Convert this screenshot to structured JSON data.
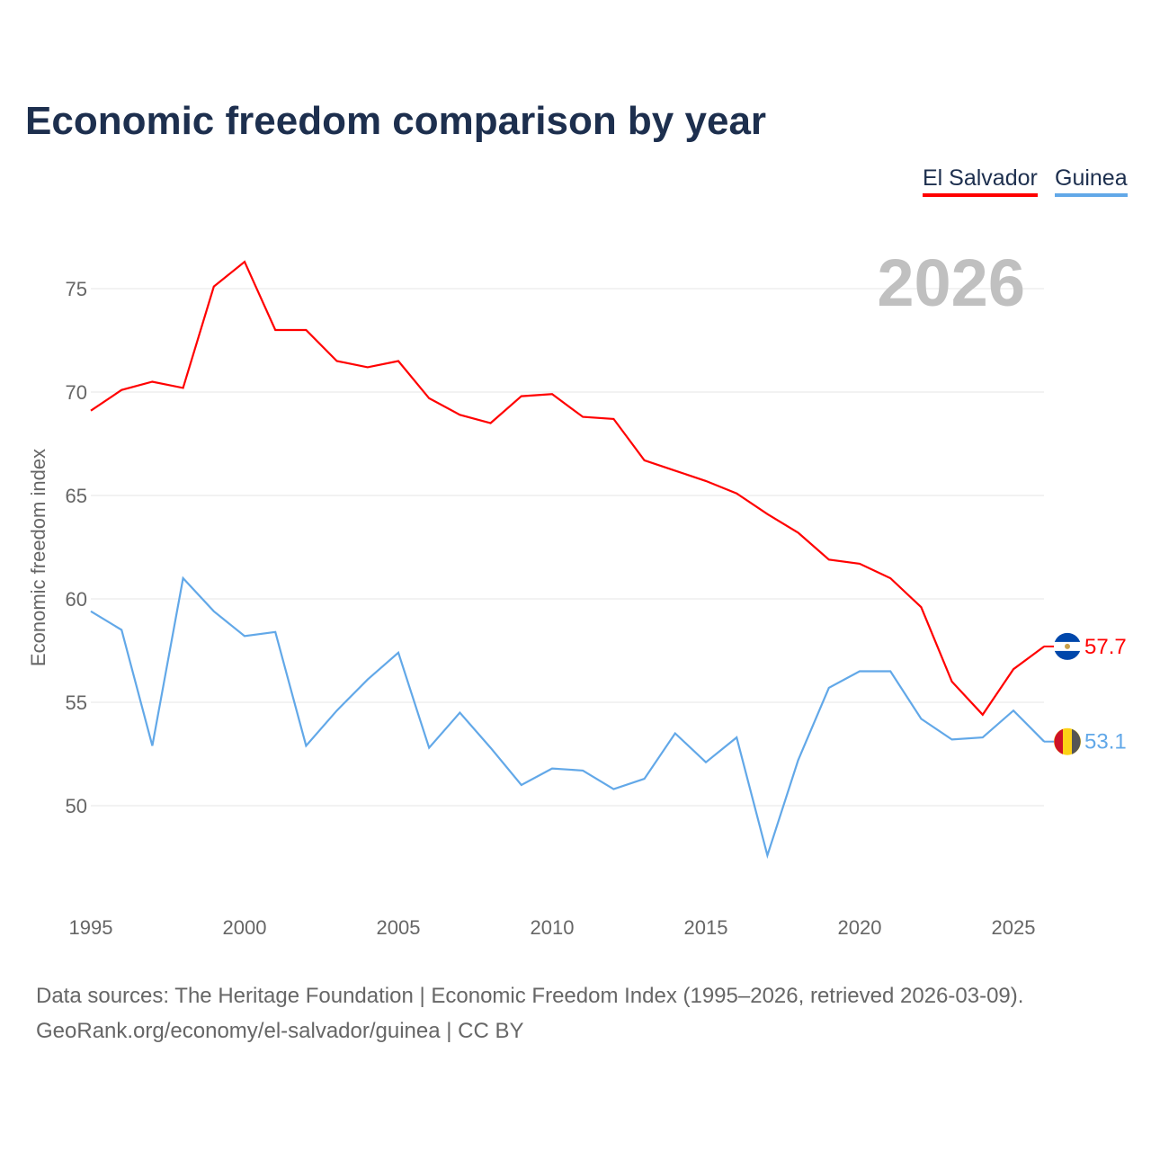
{
  "chart_data": {
    "type": "line",
    "title": "Economic freedom comparison by year",
    "ylabel": "Economic freedom index",
    "xlabel": "",
    "ylim": [
      45,
      77
    ],
    "xlim": [
      1995,
      2026
    ],
    "yticks": [
      50,
      55,
      60,
      65,
      70,
      75
    ],
    "xticks": [
      1995,
      2000,
      2005,
      2010,
      2015,
      2020,
      2025
    ],
    "grid": true,
    "legend_position": "top-right",
    "year_label": "2026",
    "x": [
      1995,
      1996,
      1997,
      1998,
      1999,
      2000,
      2001,
      2002,
      2003,
      2004,
      2005,
      2006,
      2007,
      2008,
      2009,
      2010,
      2011,
      2012,
      2013,
      2014,
      2015,
      2016,
      2017,
      2018,
      2019,
      2020,
      2021,
      2022,
      2023,
      2024,
      2025,
      2026
    ],
    "series": [
      {
        "name": "El Salvador",
        "color": "#ff0000",
        "end_label": "57.7",
        "values": [
          69.1,
          70.1,
          70.5,
          70.2,
          75.1,
          76.3,
          73.0,
          73.0,
          71.5,
          71.2,
          71.5,
          69.7,
          68.9,
          68.5,
          69.8,
          69.9,
          68.8,
          68.7,
          66.7,
          66.2,
          65.7,
          65.1,
          64.1,
          63.2,
          61.9,
          61.7,
          61.0,
          59.6,
          56.0,
          54.4,
          56.6,
          57.7
        ]
      },
      {
        "name": "Guinea",
        "color": "#62a8e8",
        "end_label": "53.1",
        "values": [
          59.4,
          58.5,
          52.9,
          61.0,
          59.4,
          58.2,
          58.4,
          52.9,
          54.6,
          56.1,
          57.4,
          52.8,
          54.5,
          52.8,
          51.0,
          51.8,
          51.7,
          50.8,
          51.3,
          53.5,
          52.1,
          53.3,
          47.6,
          52.2,
          55.7,
          56.5,
          56.5,
          54.2,
          53.2,
          53.3,
          54.6,
          53.1
        ]
      }
    ]
  },
  "footer": {
    "line1": "Data sources: The Heritage Foundation | Economic Freedom Index (1995–2026, retrieved 2026-03-09).",
    "line2": "GeoRank.org/economy/el-salvador/guinea | CC BY"
  }
}
